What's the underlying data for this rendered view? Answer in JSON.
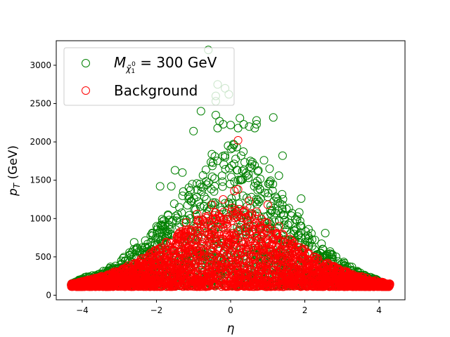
{
  "chart_data": {
    "type": "scatter",
    "title": "",
    "xlabel": "η",
    "ylabel": "p_T (GeV)",
    "xlim": [
      -4.7,
      4.7
    ],
    "ylim": [
      -60,
      3320
    ],
    "xticks": [
      -4,
      -2,
      0,
      2,
      4
    ],
    "xtick_labels": [
      "−4",
      "−2",
      "0",
      "2",
      "4"
    ],
    "yticks": [
      0,
      500,
      1000,
      1500,
      2000,
      2500,
      3000
    ],
    "ytick_labels": [
      "0",
      "500",
      "1000",
      "1500",
      "2000",
      "2500",
      "3000"
    ],
    "grid": false,
    "legend": {
      "position": "top-left",
      "entries": [
        {
          "label_main": "M",
          "label_sub": "χ̃",
          "label_sub2": "1",
          "label_sup": "0",
          "label_rest": " = 300 GeV",
          "color": "#008000"
        },
        {
          "label": "Background",
          "color": "#ff0000"
        }
      ]
    },
    "series": [
      {
        "name": "M_{χ̃_1^0} = 300 GeV",
        "color": "#008000",
        "marker": "open-circle",
        "envelope": {
          "x": [
            -4.3,
            -3.5,
            -3,
            -2.5,
            -2,
            -1.5,
            -1,
            -0.5,
            0,
            0.5,
            1,
            1.5,
            2,
            2.5,
            3,
            3.5,
            4.2
          ],
          "y_max": [
            180,
            300,
            450,
            650,
            900,
            1250,
            1550,
            1850,
            2000,
            1850,
            1550,
            1250,
            900,
            650,
            450,
            300,
            150
          ]
        },
        "y_min": 120,
        "points": [
          [
            -0.6,
            3200
          ],
          [
            -0.35,
            2750
          ],
          [
            -0.15,
            2700
          ],
          [
            -0.05,
            2620
          ],
          [
            -0.4,
            2600
          ],
          [
            -0.4,
            2530
          ],
          [
            -0.8,
            2400
          ],
          [
            0.7,
            2280
          ],
          [
            0.7,
            2230
          ],
          [
            0.65,
            2180
          ],
          [
            0.5,
            2200
          ],
          [
            0.35,
            2230
          ],
          [
            0.25,
            2310
          ],
          [
            1.15,
            2320
          ],
          [
            -0.2,
            2230
          ],
          [
            -0.35,
            2180
          ],
          [
            0.2,
            2180
          ],
          [
            0.0,
            2220
          ],
          [
            -1.0,
            2140
          ],
          [
            -0.4,
            2350
          ],
          [
            -0.3,
            2270
          ],
          [
            1.4,
            1820
          ],
          [
            -1.5,
            1630
          ],
          [
            -1.9,
            1420
          ],
          [
            1.9,
            1260
          ],
          [
            1.85,
            1080
          ],
          [
            2.1,
            860
          ],
          [
            2.55,
            810
          ],
          [
            2.7,
            540
          ],
          [
            -2.3,
            630
          ],
          [
            -2.6,
            690
          ],
          [
            1.05,
            1650
          ],
          [
            0.9,
            1760
          ],
          [
            1.3,
            1560
          ],
          [
            -1.6,
            1420
          ],
          [
            -1.3,
            1600
          ]
        ]
      },
      {
        "name": "Background",
        "color": "#ff0000",
        "marker": "open-circle",
        "envelope": {
          "x": [
            -4.3,
            -4,
            -3.5,
            -3,
            -2.5,
            -2,
            -1.5,
            -1,
            -0.5,
            0,
            0.5,
            1,
            1.5,
            2,
            2.5,
            3,
            3.5,
            4,
            4.3
          ],
          "y_max": [
            150,
            180,
            250,
            330,
            450,
            600,
            780,
            950,
            1100,
            1150,
            1100,
            950,
            780,
            600,
            450,
            330,
            250,
            180,
            150
          ]
        },
        "y_min": 110,
        "points": [
          [
            0.2,
            2020
          ],
          [
            0.2,
            1380
          ],
          [
            0.1,
            1360
          ],
          [
            -0.2,
            1250
          ],
          [
            0.5,
            1230
          ],
          [
            -0.5,
            1180
          ],
          [
            -0.9,
            1060
          ],
          [
            1.0,
            1180
          ],
          [
            -1.2,
            950
          ],
          [
            1.3,
            900
          ],
          [
            0.7,
            1090
          ],
          [
            -0.3,
            1010
          ]
        ]
      }
    ]
  }
}
